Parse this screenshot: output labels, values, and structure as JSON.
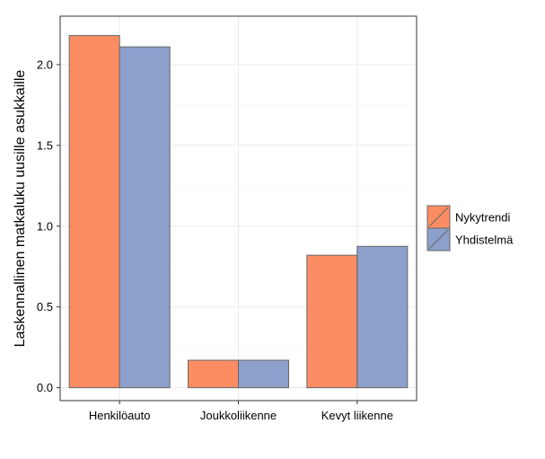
{
  "chart_data": {
    "type": "bar",
    "categories": [
      "Henkilöauto",
      "Joukkoliikenne",
      "Kevyt liikenne"
    ],
    "series": [
      {
        "name": "Nykytrendi",
        "values": [
          2.18,
          0.17,
          0.82
        ],
        "color": "#FC8D62"
      },
      {
        "name": "Yhdistelmä",
        "values": [
          2.11,
          0.17,
          0.875
        ],
        "color": "#8DA0CB"
      }
    ],
    "title": "",
    "xlabel": "",
    "ylabel": "Laskennallinen matkaluku uusille asukkaille",
    "ylim": [
      -0.08,
      2.3
    ],
    "yticks": [
      "0.0",
      "0.5",
      "1.0",
      "1.5",
      "2.0"
    ],
    "grid": true,
    "legend_position": "right",
    "bar_edge_color": "#666666",
    "background": "#ffffff"
  }
}
